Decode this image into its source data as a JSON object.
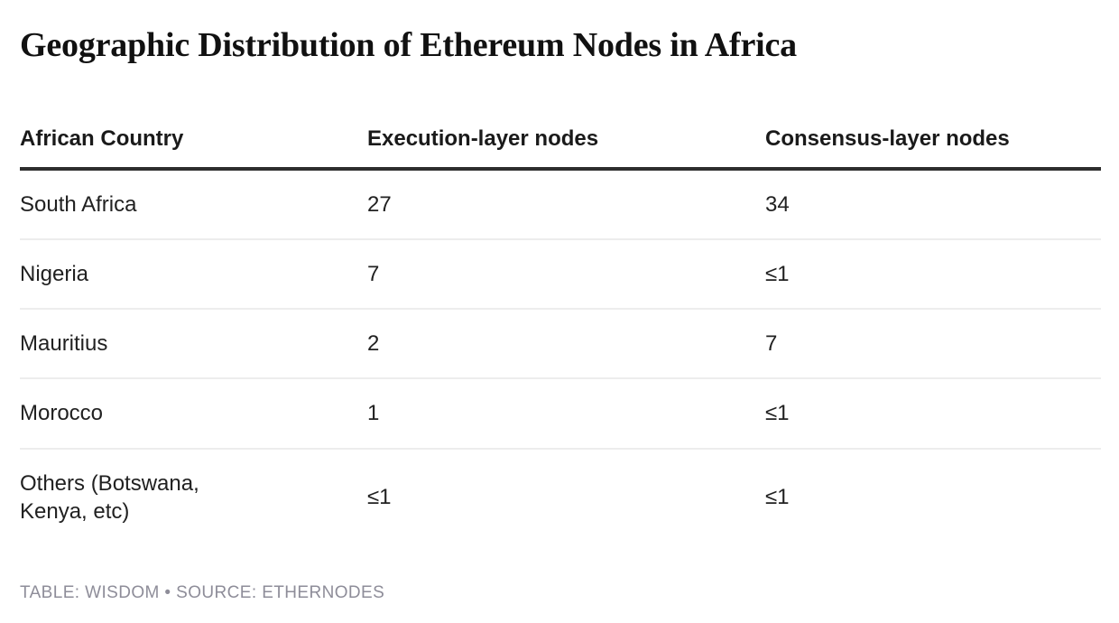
{
  "chart_data": {
    "type": "table",
    "title": "Geographic Distribution of Ethereum Nodes in Africa",
    "columns": [
      "African Country",
      "Execution-layer nodes",
      "Consensus-layer nodes"
    ],
    "rows": [
      [
        "South Africa",
        "27",
        "34"
      ],
      [
        "Nigeria",
        "7",
        "≤1"
      ],
      [
        "Mauritius",
        "2",
        "7"
      ],
      [
        "Morocco",
        "1",
        "≤1"
      ],
      [
        "Others (Botswana, Kenya, etc)",
        "≤1",
        "≤1"
      ]
    ],
    "footer": "TABLE: WISDOM • SOURCE: ETHERNODES",
    "layout_hints": {
      "grid": "horizontal row dividers only",
      "header_rule": "thick dark"
    }
  },
  "colors": {
    "background": "#ffffff",
    "title_text": "#111111",
    "header_text": "#1a1a1a",
    "body_text": "#212121",
    "header_rule": "#2e2e2e",
    "row_divider": "#ededed",
    "footer_text": "#8e8d99"
  }
}
